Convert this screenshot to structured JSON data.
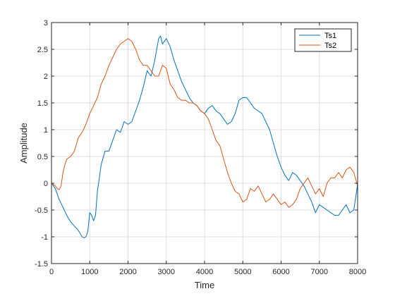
{
  "chart_data": {
    "type": "line",
    "xlabel": "Time",
    "ylabel": "Amplitude",
    "xlim": [
      0,
      8000
    ],
    "ylim": [
      -1.5,
      3
    ],
    "xticks": [
      0,
      1000,
      2000,
      3000,
      4000,
      5000,
      6000,
      7000,
      8000
    ],
    "yticks": [
      -1.5,
      -1,
      -0.5,
      0,
      0.5,
      1,
      1.5,
      2,
      2.5,
      3
    ],
    "xtick_labels": [
      "0",
      "1000",
      "2000",
      "3000",
      "4000",
      "5000",
      "6000",
      "7000",
      "8000"
    ],
    "ytick_labels": [
      "-1.5",
      "-1",
      "-0.5",
      "0",
      "0.5",
      "1",
      "1.5",
      "2",
      "2.5",
      "3"
    ],
    "grid": true,
    "legend_position": "top-right",
    "series": [
      {
        "name": "Ts1",
        "color": "#0072BD",
        "x": [
          0,
          100,
          200,
          300,
          400,
          500,
          600,
          700,
          800,
          850,
          900,
          950,
          1000,
          1050,
          1100,
          1150,
          1200,
          1250,
          1300,
          1400,
          1500,
          1600,
          1700,
          1800,
          1900,
          2000,
          2100,
          2200,
          2300,
          2400,
          2500,
          2600,
          2700,
          2800,
          2850,
          2900,
          2950,
          3000,
          3100,
          3200,
          3300,
          3400,
          3500,
          3600,
          3700,
          3800,
          3900,
          4000,
          4100,
          4200,
          4300,
          4400,
          4500,
          4600,
          4700,
          4800,
          4900,
          5000,
          5100,
          5200,
          5300,
          5400,
          5500,
          5600,
          5700,
          5800,
          5900,
          6000,
          6100,
          6200,
          6300,
          6400,
          6500,
          6600,
          6700,
          6800,
          6900,
          7000,
          7100,
          7200,
          7300,
          7400,
          7500,
          7600,
          7700,
          7800,
          7900,
          8000
        ],
        "values": [
          0,
          -0.1,
          -0.3,
          -0.45,
          -0.6,
          -0.72,
          -0.8,
          -0.88,
          -1.0,
          -1.02,
          -1.0,
          -0.9,
          -0.55,
          -0.6,
          -0.7,
          -0.6,
          -0.15,
          0.1,
          0.35,
          0.6,
          0.6,
          0.8,
          1.0,
          0.95,
          1.15,
          1.1,
          1.15,
          1.35,
          1.55,
          1.8,
          2.1,
          2.0,
          2.3,
          2.7,
          2.75,
          2.6,
          2.65,
          2.7,
          2.55,
          2.3,
          2.1,
          1.9,
          1.75,
          1.6,
          1.5,
          1.45,
          1.35,
          1.3,
          1.4,
          1.45,
          1.35,
          1.3,
          1.2,
          1.1,
          1.15,
          1.3,
          1.55,
          1.6,
          1.6,
          1.5,
          1.4,
          1.35,
          1.3,
          1.15,
          1.0,
          0.75,
          0.5,
          0.3,
          0.15,
          0.05,
          0.2,
          0.15,
          0.05,
          -0.05,
          -0.2,
          -0.35,
          -0.55,
          -0.4,
          -0.45,
          -0.5,
          -0.55,
          -0.6,
          -0.6,
          -0.5,
          -0.4,
          -0.55,
          -0.5,
          -0.02
        ]
      },
      {
        "name": "Ts2",
        "color": "#D95319",
        "x": [
          0,
          100,
          150,
          200,
          250,
          300,
          350,
          400,
          500,
          600,
          700,
          800,
          900,
          1000,
          1100,
          1200,
          1300,
          1400,
          1500,
          1600,
          1700,
          1800,
          1900,
          2000,
          2100,
          2200,
          2300,
          2400,
          2500,
          2600,
          2700,
          2800,
          2900,
          3000,
          3100,
          3200,
          3300,
          3400,
          3500,
          3600,
          3700,
          3800,
          3900,
          4000,
          4100,
          4200,
          4300,
          4400,
          4500,
          4600,
          4700,
          4800,
          4900,
          5000,
          5100,
          5200,
          5300,
          5400,
          5500,
          5600,
          5700,
          5800,
          5900,
          6000,
          6100,
          6200,
          6300,
          6400,
          6500,
          6600,
          6700,
          6800,
          6900,
          7000,
          7100,
          7200,
          7300,
          7400,
          7500,
          7600,
          7700,
          7800,
          7900,
          8000
        ],
        "values": [
          0,
          -0.05,
          -0.1,
          -0.12,
          -0.05,
          0.2,
          0.35,
          0.45,
          0.5,
          0.6,
          0.85,
          0.95,
          1.1,
          1.3,
          1.45,
          1.6,
          1.85,
          2.0,
          2.2,
          2.35,
          2.5,
          2.6,
          2.65,
          2.7,
          2.65,
          2.5,
          2.3,
          2.2,
          2.2,
          2.1,
          2.0,
          2.0,
          2.2,
          2.15,
          1.85,
          1.75,
          1.6,
          1.55,
          1.55,
          1.5,
          1.5,
          1.45,
          1.35,
          1.3,
          1.2,
          1.0,
          0.8,
          0.7,
          0.45,
          0.2,
          0.0,
          -0.15,
          -0.2,
          -0.35,
          -0.3,
          -0.1,
          -0.15,
          -0.05,
          -0.2,
          -0.35,
          -0.3,
          -0.2,
          -0.3,
          -0.4,
          -0.35,
          -0.45,
          -0.4,
          -0.3,
          -0.1,
          0.0,
          0.1,
          -0.05,
          -0.2,
          -0.1,
          -0.25,
          0.0,
          0.1,
          0.1,
          0.2,
          0.1,
          0.25,
          0.3,
          0.2,
          -0.05
        ]
      }
    ]
  }
}
